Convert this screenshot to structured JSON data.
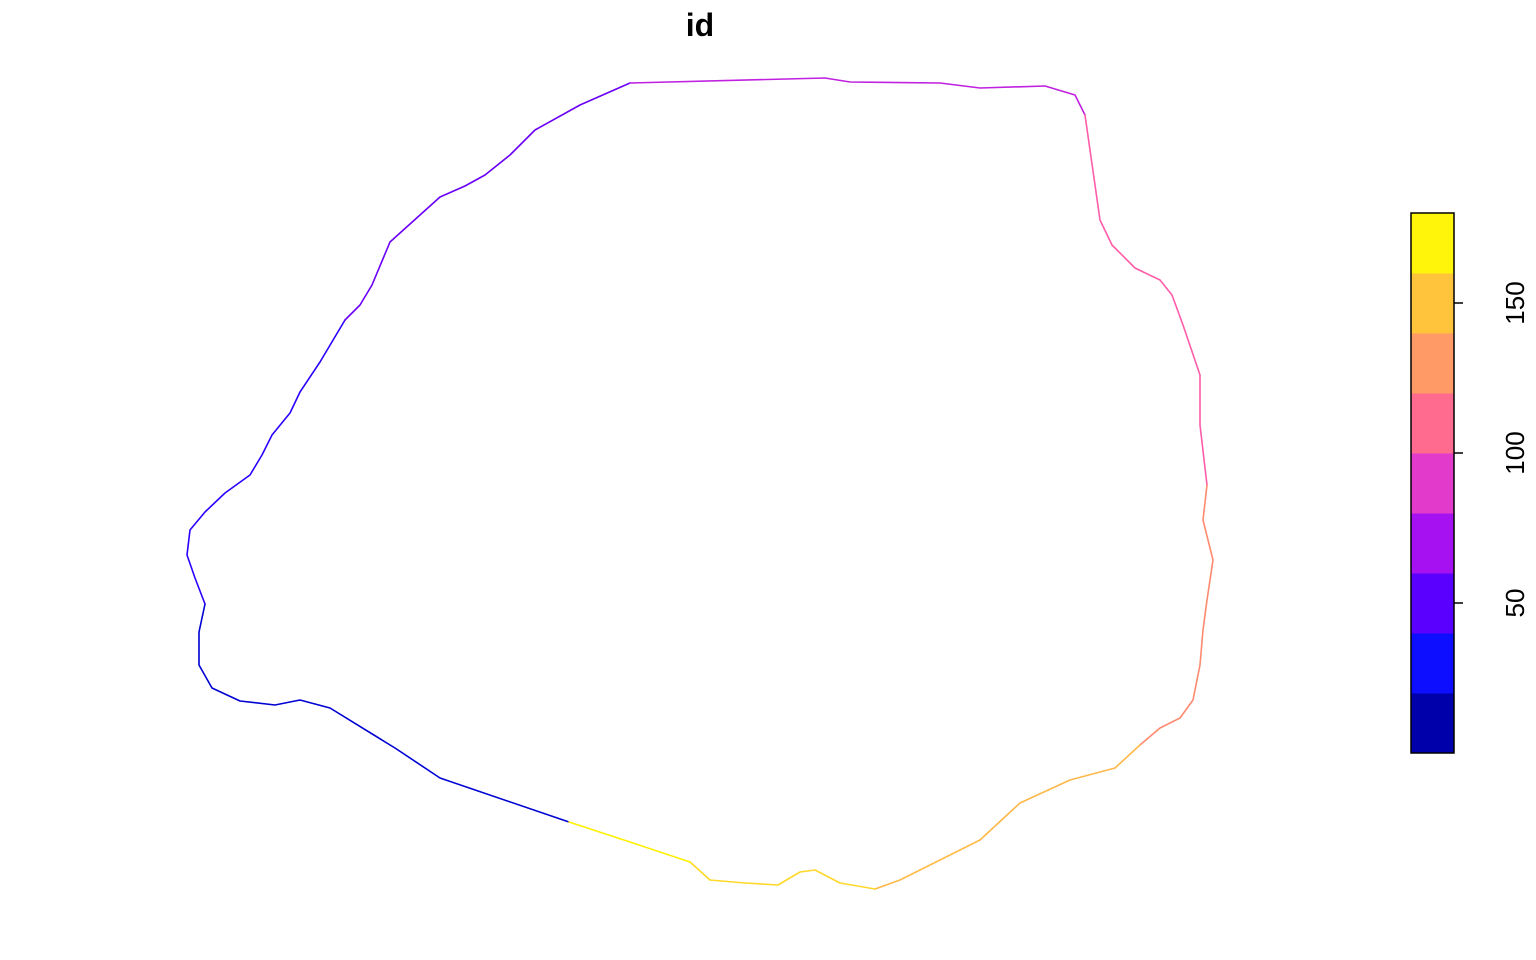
{
  "title": "id",
  "colorbar": {
    "lim": [
      0,
      180
    ],
    "ticks": [
      50,
      100,
      150
    ],
    "colors": [
      "#0000AA",
      "#0D0DFF",
      "#5A00FF",
      "#A511F0",
      "#E23ACB",
      "#FF6A8F",
      "#FF9966",
      "#FFC43B",
      "#FFF50A"
    ]
  }
}
